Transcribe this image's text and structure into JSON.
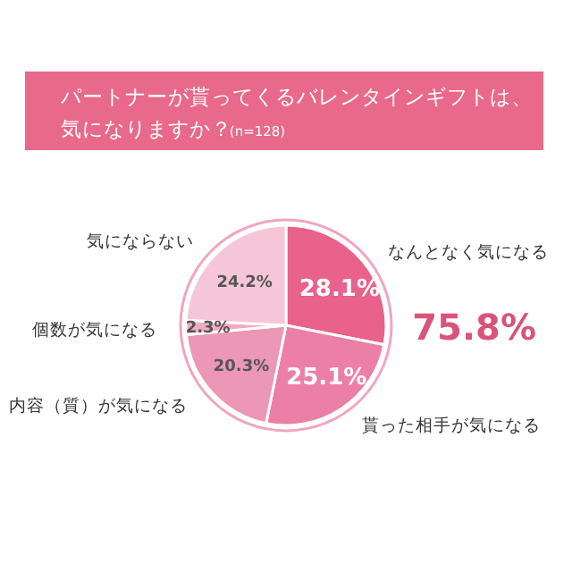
{
  "chart_data": {
    "type": "pie",
    "title": "パートナーが貰ってくるバレンタインギフトは、気になりますか？",
    "subtitle": "(n=128)",
    "categories": [
      "なんとなく気になる",
      "貰った相手が気になる",
      "内容（質）が気になる",
      "個数が気になる",
      "気にならない"
    ],
    "values": [
      28.1,
      25.1,
      20.3,
      2.3,
      24.2
    ],
    "colors": [
      "#e8628b",
      "#ec7fa5",
      "#eb97b5",
      "#f0aac3",
      "#f5c6d7"
    ],
    "value_labels": [
      "28.1%",
      "25.1%",
      "20.3%",
      "2.3%",
      "24.2%"
    ],
    "annotations": [
      "75.8%"
    ]
  }
}
